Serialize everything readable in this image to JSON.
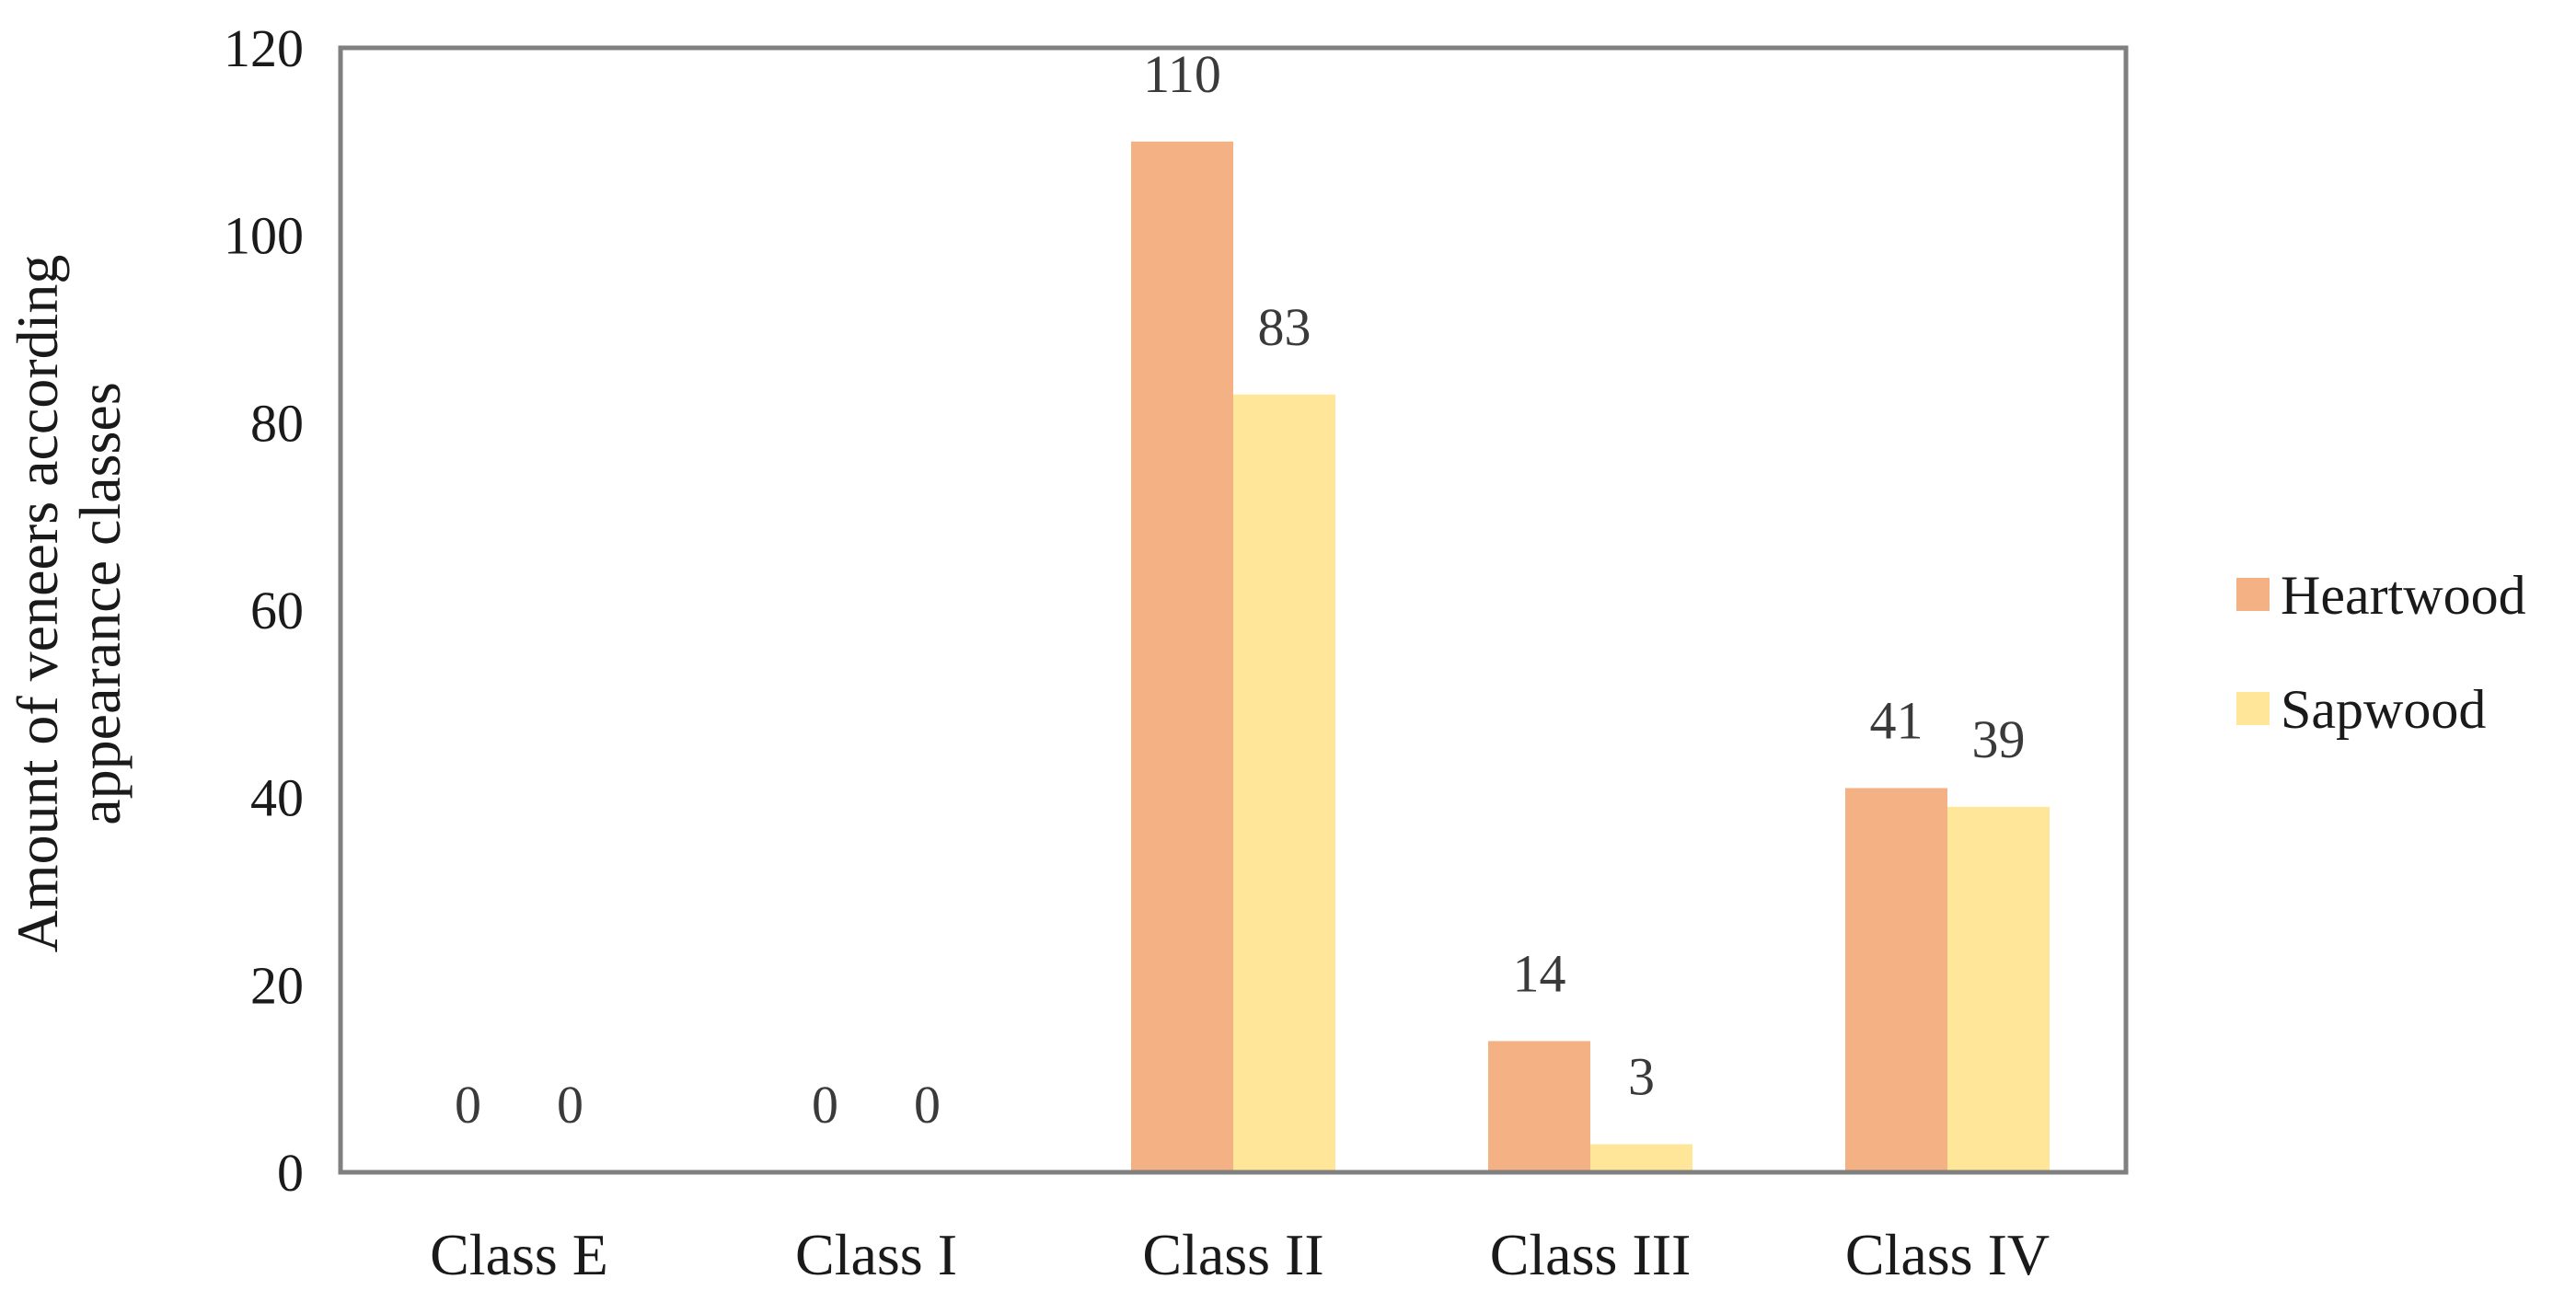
{
  "chart_data": {
    "type": "bar",
    "title": "",
    "xlabel": "",
    "ylabel_lines": [
      "Amount of veneers according",
      "appearance classes"
    ],
    "categories": [
      "Class E",
      "Class I",
      "Class II",
      "Class III",
      "Class IV"
    ],
    "series": [
      {
        "name": "Heartwood",
        "color": "#F4B183",
        "values": [
          0,
          0,
          110,
          14,
          41
        ]
      },
      {
        "name": "Sapwood",
        "color": "#FFE699",
        "values": [
          0,
          0,
          83,
          3,
          39
        ]
      }
    ],
    "ylim": [
      0,
      120
    ],
    "yticks": [
      0,
      20,
      40,
      60,
      80,
      100,
      120
    ],
    "grid": false,
    "legend_position": "right",
    "data_labels": true
  }
}
